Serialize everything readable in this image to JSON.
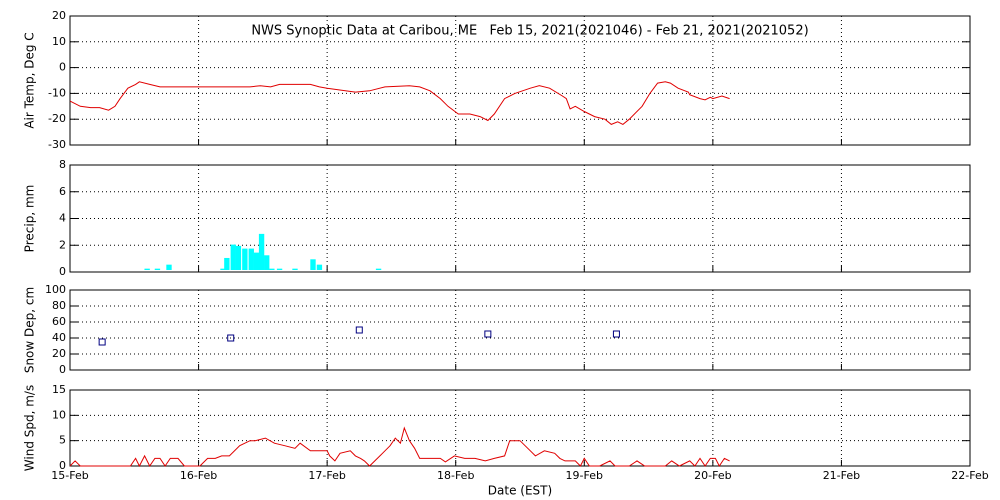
{
  "chart_data": [
    {
      "type": "line",
      "title": "NWS Synoptic Data at Caribou, ME   Feb 15, 2021(2021046) - Feb 21, 2021(2021052)",
      "ylabel": "Air Temp, Deg C",
      "color": "#e00000",
      "x": [
        0,
        0.08,
        0.16,
        0.23,
        0.3,
        0.35,
        0.39,
        0.45,
        0.51,
        0.54,
        0.62,
        0.7,
        1.01,
        1.4,
        1.48,
        1.56,
        1.63,
        1.87,
        1.94,
        2.0,
        2.22,
        2.33,
        2.45,
        2.64,
        2.72,
        2.8,
        2.88,
        2.94,
        3.02,
        3.11,
        3.19,
        3.25,
        3.3,
        3.38,
        3.46,
        3.58,
        3.65,
        3.73,
        3.83,
        3.86,
        3.89,
        3.93,
        4.0,
        4.08,
        4.16,
        4.21,
        4.26,
        4.3,
        4.35,
        4.45,
        4.51,
        4.57,
        4.63,
        4.67,
        4.73,
        4.81,
        4.82,
        4.9,
        4.94,
        4.98,
        5.0,
        5.07,
        5.13
      ],
      "values": [
        -13,
        -15,
        -15.5,
        -15.5,
        -16.5,
        -15,
        -12,
        -8,
        -6.5,
        -5.5,
        -6.5,
        -7.5,
        -7.5,
        -7.5,
        -7,
        -7.5,
        -6.5,
        -6.5,
        -7.5,
        -8,
        -9.5,
        -9,
        -7.5,
        -7,
        -7.5,
        -9,
        -12,
        -15,
        -18,
        -18,
        -19,
        -20.5,
        -18,
        -12,
        -10,
        -8,
        -7,
        -8,
        -11,
        -12,
        -16,
        -15,
        -17,
        -19,
        -20,
        -22,
        -21,
        -22,
        -20,
        -15,
        -10,
        -6,
        -5.5,
        -6,
        -8,
        -9.5,
        -10.5,
        -12,
        -12.5,
        -11.5,
        -12,
        -11,
        -12
      ],
      "xlim": [
        0,
        7
      ],
      "ylim": [
        -30,
        20
      ],
      "yticks": [
        -30,
        -20,
        -10,
        0,
        10,
        20
      ],
      "grid": true
    },
    {
      "type": "bar",
      "ylabel": "Precip, mm",
      "color": "#00ffff",
      "x": [
        0.6,
        0.68,
        0.77,
        1.19,
        1.22,
        1.27,
        1.31,
        1.36,
        1.41,
        1.45,
        1.49,
        1.53,
        1.57,
        1.63,
        1.75,
        1.89,
        1.94,
        2.4
      ],
      "values": [
        0.1,
        0.1,
        0.4,
        0.1,
        0.9,
        1.9,
        1.8,
        1.6,
        1.6,
        1.3,
        2.7,
        1.1,
        0.1,
        0.1,
        0.1,
        0.8,
        0.4,
        0.1
      ],
      "xlim": [
        0,
        7
      ],
      "ylim": [
        0,
        8
      ],
      "yticks": [
        0,
        2,
        4,
        6,
        8
      ],
      "grid": true
    },
    {
      "type": "scatter",
      "ylabel": "Snow Dep, cm",
      "color": "#000080",
      "x": [
        0.25,
        1.25,
        2.25,
        3.25,
        4.25
      ],
      "values": [
        35,
        40,
        50,
        45,
        45
      ],
      "xlim": [
        0,
        7
      ],
      "ylim": [
        0,
        100
      ],
      "yticks": [
        0,
        20,
        40,
        60,
        80,
        100
      ],
      "grid": true
    },
    {
      "type": "line",
      "ylabel": "Wind Spd, m/s",
      "xlabel": "Date (EST)",
      "color": "#e00000",
      "x": [
        0,
        0.04,
        0.08,
        0.47,
        0.51,
        0.54,
        0.58,
        0.62,
        0.66,
        0.7,
        0.74,
        0.78,
        0.84,
        0.89,
        1.01,
        1.07,
        1.13,
        1.18,
        1.24,
        1.32,
        1.4,
        1.44,
        1.52,
        1.59,
        1.67,
        1.75,
        1.79,
        1.87,
        1.94,
        2.0,
        2.02,
        2.06,
        2.1,
        2.18,
        2.22,
        2.26,
        2.29,
        2.33,
        2.41,
        2.45,
        2.49,
        2.53,
        2.57,
        2.6,
        2.64,
        2.68,
        2.72,
        2.8,
        2.88,
        2.92,
        2.99,
        3.07,
        3.15,
        3.23,
        3.3,
        3.38,
        3.42,
        3.5,
        3.58,
        3.62,
        3.69,
        3.77,
        3.81,
        3.85,
        3.93,
        3.97,
        4.0,
        4.04,
        4.12,
        4.2,
        4.24,
        4.35,
        4.41,
        4.47,
        4.63,
        4.68,
        4.74,
        4.82,
        4.86,
        4.9,
        4.94,
        4.98,
        5.02,
        5.05,
        5.09,
        5.13
      ],
      "values": [
        0,
        1,
        0,
        0,
        1.5,
        0,
        2,
        0,
        1.5,
        1.5,
        0,
        1.5,
        1.5,
        0,
        0,
        1.5,
        1.5,
        2,
        2,
        4,
        5,
        5,
        5.5,
        4.5,
        4,
        3.5,
        4.5,
        3,
        3,
        3,
        2,
        1,
        2.5,
        3,
        2,
        1.5,
        1,
        0,
        2,
        3,
        4,
        5.5,
        4.5,
        7.5,
        5,
        3.5,
        1.5,
        1.5,
        1.5,
        0.8,
        2,
        1.5,
        1.5,
        1,
        1.5,
        2,
        5,
        5,
        3,
        2,
        3,
        2.5,
        1.5,
        1,
        1,
        0,
        1.5,
        0,
        0,
        1,
        0,
        0,
        1,
        0,
        0,
        1,
        0,
        1,
        0,
        1.5,
        0,
        1.5,
        1.5,
        0,
        1.5,
        1
      ],
      "xlim": [
        0,
        7
      ],
      "ylim": [
        0,
        15
      ],
      "yticks": [
        0,
        5,
        10,
        15
      ],
      "grid": true,
      "xticks": [
        {
          "value": 0,
          "label": "15-Feb"
        },
        {
          "value": 1,
          "label": "16-Feb"
        },
        {
          "value": 2,
          "label": "17-Feb"
        },
        {
          "value": 3,
          "label": "18-Feb"
        },
        {
          "value": 4,
          "label": "19-Feb"
        },
        {
          "value": 5,
          "label": "20-Feb"
        },
        {
          "value": 6,
          "label": "21-Feb"
        },
        {
          "value": 7,
          "label": "22-Feb"
        }
      ]
    }
  ]
}
